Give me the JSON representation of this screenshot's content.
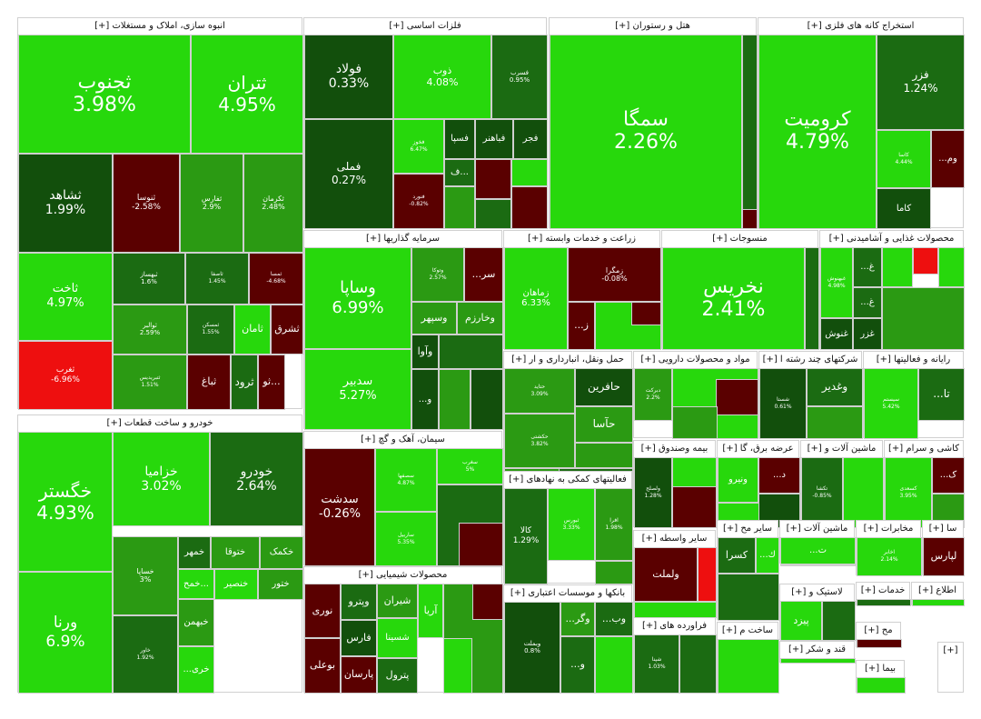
{
  "colors": {
    "strong_pos": "#27d80c",
    "pos": "#44c21e",
    "mid_pos": "#2b9a13",
    "dark_pos": "#1b6b12",
    "vdark_pos": "#124f0c",
    "neg": "#5a0000",
    "strong_neg": "#ee0f0f"
  },
  "chart_data": {
    "type": "treemap",
    "title": "",
    "sectors": [
      {
        "name": "انبوه سازی، املاک و مستغلات [+]",
        "tiles": [
          {
            "s": "ثجنوب",
            "v": "3.98%"
          },
          {
            "s": "ثتران",
            "v": "4.95%"
          },
          {
            "s": "ثشاهد",
            "v": "1.99%"
          },
          {
            "s": "ثنوسا",
            "v": "-2.58%"
          },
          {
            "s": "ثفارس",
            "v": "2.9%"
          },
          {
            "s": "ثکرمان",
            "v": "2.48%"
          },
          {
            "s": "ثاخت",
            "v": "4.97%"
          },
          {
            "s": "ثبهساز",
            "v": "1.6%"
          },
          {
            "s": "ثاصفا",
            "v": "1.45%"
          },
          {
            "s": "ثمسا",
            "v": "-4.68%"
          },
          {
            "s": "ثامان",
            "v": ""
          },
          {
            "s": "ثشرق",
            "v": ""
          },
          {
            "s": "ثوالبر",
            "v": "2.59%"
          },
          {
            "s": "ثمسکن",
            "v": "1.55%"
          },
          {
            "s": "ثغرب",
            "v": "-6.96%"
          },
          {
            "s": "ثتبریدیس",
            "v": "1.51%"
          },
          {
            "s": "ثباغ",
            "v": ""
          },
          {
            "s": "ثرود",
            "v": ""
          },
          {
            "s": "ثو...",
            "v": ""
          }
        ]
      },
      {
        "name": "فلزات اساسی [+]",
        "tiles": [
          {
            "s": "فولاد",
            "v": "0.33%"
          },
          {
            "s": "ذوب",
            "v": "4.08%"
          },
          {
            "s": "فسرب",
            "v": "0.95%"
          },
          {
            "s": "فملی",
            "v": "0.27%"
          },
          {
            "s": "فخوز",
            "v": "6.47%"
          },
          {
            "s": "فسپا",
            "v": ""
          },
          {
            "s": "فباهنر",
            "v": ""
          },
          {
            "s": "فجر",
            "v": ""
          },
          {
            "s": "ف...",
            "v": ""
          },
          {
            "s": "فنورد",
            "v": "-0.82%"
          }
        ]
      },
      {
        "name": "هتل و رستوران [+]",
        "tiles": [
          {
            "s": "سمگا",
            "v": "2.26%"
          }
        ]
      },
      {
        "name": "استخراج کانه های فلزی [+]",
        "tiles": [
          {
            "s": "کرومیت",
            "v": "4.79%"
          },
          {
            "s": "فزر",
            "v": "1.24%"
          },
          {
            "s": "کاسا",
            "v": "4.44%"
          },
          {
            "s": "...وم",
            "v": ""
          },
          {
            "s": "کاما",
            "v": ""
          }
        ]
      },
      {
        "name": "سرمایه گذاریها [+]",
        "tiles": [
          {
            "s": "وساپا",
            "v": "6.99%"
          },
          {
            "s": "وتوکا",
            "v": "2.57%"
          },
          {
            "s": "...سر",
            "v": ""
          },
          {
            "s": "وسپهر",
            "v": ""
          },
          {
            "s": "وخارزم",
            "v": ""
          },
          {
            "s": "وآوا",
            "v": ""
          },
          {
            "s": "سدبیر",
            "v": "5.27%"
          },
          {
            "s": "...و",
            "v": ""
          }
        ]
      },
      {
        "name": "زراعت و خدمات وابسته [+]",
        "tiles": [
          {
            "s": "زماهان",
            "v": "6.33%"
          },
          {
            "s": "زمگرا",
            "v": "-0.08%"
          },
          {
            "s": "...ز",
            "v": ""
          }
        ]
      },
      {
        "name": "منسوجات [+]",
        "tiles": [
          {
            "s": "نخریس",
            "v": "2.41%"
          }
        ]
      },
      {
        "name": "محصولات غذایی و آشامیدنی [+]",
        "tiles": [
          {
            "s": "غبهنوش",
            "v": "4.98%"
          },
          {
            "s": "...غ",
            "v": ""
          },
          {
            "s": "...غ",
            "v": ""
          },
          {
            "s": "غنوش",
            "v": ""
          },
          {
            "s": "غزر",
            "v": ""
          }
        ]
      },
      {
        "name": "خودرو و ساخت قطعات [+]",
        "tiles": [
          {
            "s": "خگستر",
            "v": "4.93%"
          },
          {
            "s": "خزامیا",
            "v": "3.02%"
          },
          {
            "s": "خودرو",
            "v": "2.64%"
          },
          {
            "s": "ورنا",
            "v": "6.9%"
          },
          {
            "s": "خساپا",
            "v": "3%"
          },
          {
            "s": "خمهر",
            "v": ""
          },
          {
            "s": "ختوقا",
            "v": ""
          },
          {
            "s": "خکمک",
            "v": ""
          },
          {
            "s": "خمح...",
            "v": ""
          },
          {
            "s": "خنصیر",
            "v": ""
          },
          {
            "s": "ختور",
            "v": ""
          },
          {
            "s": "خاور",
            "v": "1.92%"
          },
          {
            "s": "خبهمن",
            "v": ""
          },
          {
            "s": "...خری",
            "v": ""
          }
        ]
      },
      {
        "name": "سیمان، آهک و گچ [+]",
        "tiles": [
          {
            "s": "سدشت",
            "v": "-0.26%"
          },
          {
            "s": "سصفها",
            "v": "4.87%"
          },
          {
            "s": "سغرب",
            "v": "5%"
          },
          {
            "s": "ساربیل",
            "v": "5.35%"
          }
        ]
      },
      {
        "name": "محصولات شیمیایی [+]",
        "tiles": [
          {
            "s": "نوری",
            "v": ""
          },
          {
            "s": "وپترو",
            "v": ""
          },
          {
            "s": "شیران",
            "v": ""
          },
          {
            "s": "آریا",
            "v": ""
          },
          {
            "s": "فارس",
            "v": ""
          },
          {
            "s": "شسینا",
            "v": ""
          },
          {
            "s": "بوعلی",
            "v": ""
          },
          {
            "s": "پارسان",
            "v": ""
          },
          {
            "s": "پترول",
            "v": ""
          }
        ]
      },
      {
        "name": "حمل ونقل، انبارداری و ار [+]",
        "tiles": [
          {
            "s": "حتاید",
            "v": "3.09%"
          },
          {
            "s": "حافرین",
            "v": ""
          },
          {
            "s": "حآسا",
            "v": ""
          },
          {
            "s": "حکشتی",
            "v": "3.82%"
          }
        ]
      },
      {
        "name": "مواد و محصولات دارویی [+]",
        "tiles": [
          {
            "s": "دبرکت",
            "v": "2.2%"
          }
        ]
      },
      {
        "name": "شرکتهای چند رشته ا [+]",
        "tiles": [
          {
            "s": "وغدیر",
            "v": ""
          },
          {
            "s": "شستا",
            "v": "0.61%"
          }
        ]
      },
      {
        "name": "رایانه و فعالیتها [+]",
        "tiles": [
          {
            "s": "...تا",
            "v": ""
          },
          {
            "s": "سیستم",
            "v": "5.42%"
          }
        ]
      },
      {
        "name": "فعالیتهای کمکی به نهادهای [+]",
        "tiles": [
          {
            "s": "کالا",
            "v": "1.29%"
          },
          {
            "s": "ثبورس",
            "v": "3.33%"
          },
          {
            "s": "افرا",
            "v": "1.98%"
          }
        ]
      },
      {
        "name": "بیمه وصندوق [+]",
        "tiles": [
          {
            "s": "ولصلح",
            "v": "1.28%"
          }
        ]
      },
      {
        "name": "عرضه برق، گا [+]",
        "tiles": [
          {
            "s": "...د",
            "v": ""
          },
          {
            "s": "ونیرو",
            "v": ""
          }
        ]
      },
      {
        "name": "ماشین آلات و [+]",
        "tiles": [
          {
            "s": "تکشا",
            "v": "-0.85%"
          }
        ]
      },
      {
        "name": "کاشی و سرام [+]",
        "tiles": [
          {
            "s": "...ک",
            "v": ""
          },
          {
            "s": "کسعدی",
            "v": "3.95%"
          }
        ]
      },
      {
        "name": "سایر واسطه [+]",
        "tiles": [
          {
            "s": "ولملت",
            "v": ""
          }
        ]
      },
      {
        "name": "سایر مح [+]",
        "tiles": [
          {
            "s": "...ك",
            "v": ""
          },
          {
            "s": "کسرا",
            "v": ""
          }
        ]
      },
      {
        "name": "ماشین آلات [+]",
        "tiles": [
          {
            "s": "...ت",
            "v": ""
          }
        ]
      },
      {
        "name": "مخابرات [+]",
        "tiles": [
          {
            "s": "اخابر",
            "v": "2.14%"
          }
        ]
      },
      {
        "name": "سا [+]",
        "tiles": [
          {
            "s": "لپارس",
            "v": ""
          }
        ]
      },
      {
        "name": "بانکها و موسسات اعتباری [+]",
        "tiles": [
          {
            "s": "وبملت",
            "v": "0.8%"
          },
          {
            "s": "...وب",
            "v": ""
          },
          {
            "s": "...وگر",
            "v": ""
          },
          {
            "s": "...و",
            "v": ""
          }
        ]
      },
      {
        "name": "فراورده های [+]",
        "tiles": [
          {
            "s": "شپنا",
            "v": "1.03%"
          }
        ]
      },
      {
        "name": "لاستیک و [+]",
        "tiles": [
          {
            "s": "پیزد",
            "v": ""
          }
        ]
      },
      {
        "name": "خدمات [+]",
        "tiles": []
      },
      {
        "name": "اطلاع [+]",
        "tiles": []
      },
      {
        "name": "ساخت م [+]",
        "tiles": []
      },
      {
        "name": "مح [+]",
        "tiles": []
      },
      {
        "name": "قند و شکر [+]",
        "tiles": []
      },
      {
        "name": "بیما [+]",
        "tiles": []
      },
      {
        "name": "[+]",
        "tiles": []
      }
    ]
  }
}
